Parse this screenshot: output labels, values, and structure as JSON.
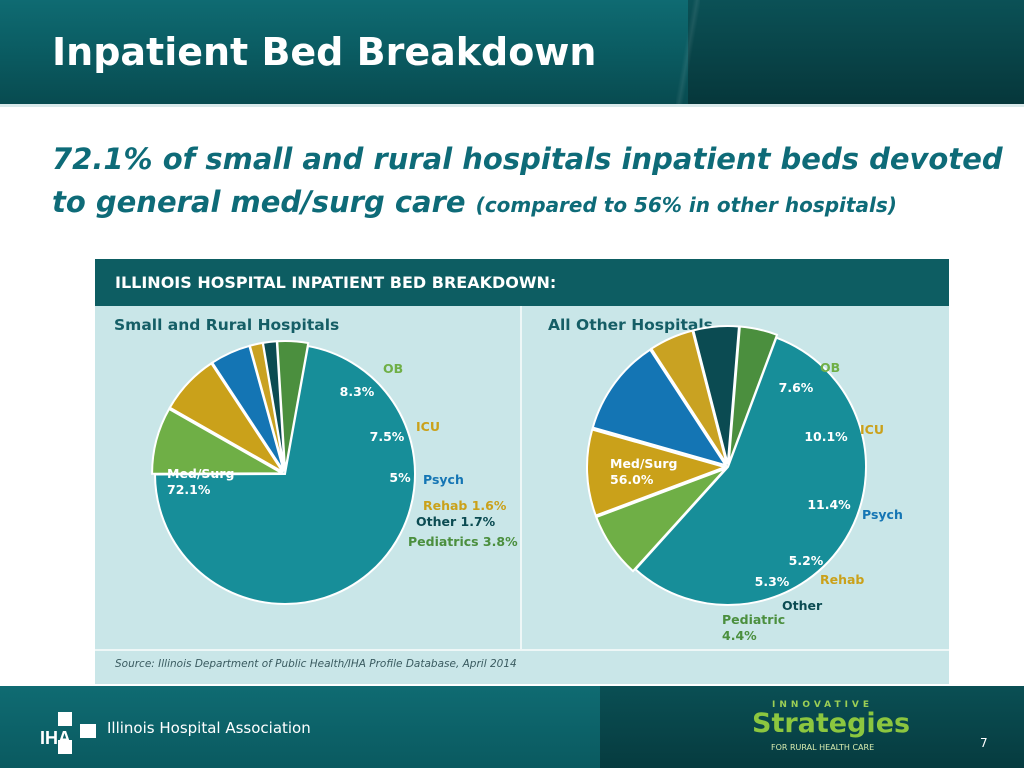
{
  "slide": {
    "title": "Inpatient Bed Breakdown",
    "subtitle_main": "72.1% of small and rural hospitals inpatient beds devoted to general med/surg care",
    "subtitle_note": "(compared to 56% in other hospitals)",
    "page_number": "7"
  },
  "panel": {
    "heading": "ILLINOIS HOSPITAL INPATIENT BED BREAKDOWN:",
    "source": "Source: Illinois Department of Public Health/IHA Profile Database, April 2014"
  },
  "footer": {
    "org_name": "Illinois Hospital Association",
    "logo_text": "IHA",
    "brand_top": "INNOVATIVE",
    "brand_main": "Strategies",
    "brand_sub": "FOR RURAL HEALTH CARE"
  },
  "colors": {
    "header": "#0a5a60",
    "med_surg": "#178e99",
    "ob": "#6faf46",
    "icu": "#caa11a",
    "psych": "#1475b4",
    "rehab": "#c9a222",
    "other": "#0b4b52",
    "pediatrics": "#4b8f3e"
  },
  "chart_data": [
    {
      "type": "pie",
      "title": "Small and Rural Hospitals",
      "slices": [
        {
          "name": "Med/Surg",
          "value": 72.1,
          "label": "Med/Surg 72.1%",
          "color": "#178e99"
        },
        {
          "name": "OB",
          "value": 8.3,
          "label": "8.3%",
          "color": "#6faf46"
        },
        {
          "name": "ICU",
          "value": 7.5,
          "label": "7.5%",
          "color": "#caa11a"
        },
        {
          "name": "Psych",
          "value": 5.0,
          "label": "5%",
          "color": "#1475b4"
        },
        {
          "name": "Rehab",
          "value": 1.6,
          "label": "Rehab 1.6%",
          "color": "#c9a222"
        },
        {
          "name": "Other",
          "value": 1.7,
          "label": "Other 1.7%",
          "color": "#0b4b52"
        },
        {
          "name": "Pediatrics",
          "value": 3.8,
          "label": "Pediatrics 3.8%",
          "color": "#4b8f3e"
        }
      ]
    },
    {
      "type": "pie",
      "title": "All Other Hospitals",
      "slices": [
        {
          "name": "Med/Surg",
          "value": 56.0,
          "label": "Med/Surg 56.0%",
          "color": "#178e99"
        },
        {
          "name": "OB",
          "value": 7.6,
          "label": "7.6%",
          "color": "#6faf46"
        },
        {
          "name": "ICU",
          "value": 10.1,
          "label": "10.1%",
          "color": "#caa11a"
        },
        {
          "name": "Psych",
          "value": 11.4,
          "label": "11.4%",
          "color": "#1475b4"
        },
        {
          "name": "Rehab",
          "value": 5.2,
          "label": "5.2%",
          "color": "#c9a222"
        },
        {
          "name": "Other",
          "value": 5.3,
          "label": "5.3%",
          "color": "#0b4b52"
        },
        {
          "name": "Pediatric",
          "value": 4.4,
          "label": "Pediatric 4.4%",
          "color": "#4b8f3e"
        }
      ]
    }
  ]
}
